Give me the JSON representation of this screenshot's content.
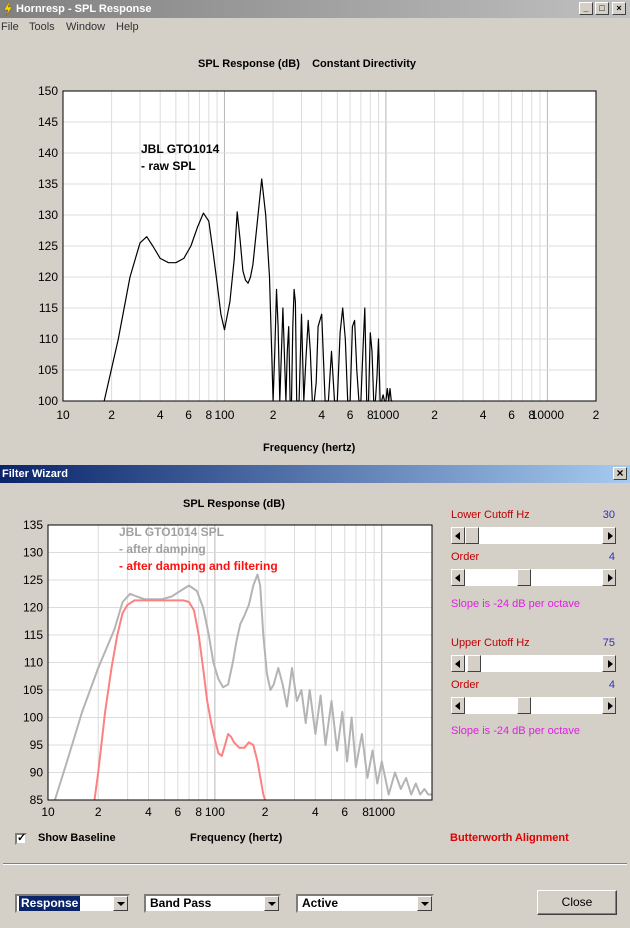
{
  "window1": {
    "title": "Hornresp - SPL Response",
    "menu": [
      "File",
      "Tools",
      "Window",
      "Help"
    ],
    "chart_title": "SPL Response (dB)    Constant Directivity",
    "xlabel": "Frequency (hertz)"
  },
  "window2": {
    "title": "Filter Wizard",
    "close_glyph": "×",
    "chart_title": "SPL Response (dB)",
    "xlabel": "Frequency (hertz)",
    "lower_cutoff_label": "Lower Cutoff  Hz",
    "lower_cutoff_value": "30",
    "lower_order_label": "Order",
    "lower_order_value": "4",
    "lower_slope_text": "Slope is -24 dB per octave",
    "upper_cutoff_label": "Upper Cutoff  Hz",
    "upper_cutoff_value": "75",
    "upper_order_label": "Order",
    "upper_order_value": "4",
    "upper_slope_text": "Slope is -24 dB per octave",
    "show_baseline_label": "Show Baseline",
    "alignment_text": "Butterworth Alignment",
    "combo_response": "Response",
    "combo_filter": "Band Pass",
    "combo_mode": "Active",
    "close_label": "Close"
  },
  "chart_data": [
    {
      "type": "line",
      "title": "SPL Response (dB)    Constant Directivity",
      "xlabel": "Frequency (hertz)",
      "ylabel": "",
      "xscale": "log",
      "xlim": [
        10,
        20000
      ],
      "ylim": [
        100,
        150
      ],
      "yticks": [
        100,
        105,
        110,
        115,
        120,
        125,
        130,
        135,
        140,
        145,
        150
      ],
      "xtick_labels": [
        "10",
        "2",
        "4",
        "6",
        "8",
        "100",
        "2",
        "4",
        "6",
        "8",
        "1000",
        "2",
        "4",
        "6",
        "8",
        "10000",
        "2"
      ],
      "annotations": [
        "JBL GTO1014",
        "- raw SPL"
      ],
      "grid": true,
      "series": [
        {
          "color": "#000000",
          "x": [
            18,
            22,
            26,
            30,
            33,
            36,
            40,
            45,
            50,
            56,
            62,
            68,
            74,
            80,
            85,
            90,
            95,
            100,
            108,
            115,
            120,
            125,
            130,
            135,
            140,
            145,
            150,
            160,
            170,
            180,
            190,
            195,
            200,
            205,
            210,
            215,
            220,
            230,
            240,
            245,
            250,
            255,
            260,
            265,
            270,
            275,
            280,
            290,
            300,
            310,
            320,
            330,
            340,
            350,
            360,
            370,
            380,
            400,
            420,
            440,
            460,
            480,
            500,
            520,
            540,
            560,
            580,
            600,
            620,
            640,
            660,
            680,
            700,
            720,
            740,
            760,
            780,
            800,
            820,
            840,
            860,
            880,
            900,
            920,
            940,
            960,
            980,
            1000,
            1020,
            1040,
            1060,
            1080,
            1100
          ],
          "y": [
            100,
            110,
            120,
            125.5,
            126.5,
            125,
            123,
            122.3,
            122.3,
            123,
            125,
            128,
            130.3,
            129,
            124,
            119,
            114,
            111.5,
            116,
            123,
            130.5,
            126,
            121,
            119.5,
            119,
            120,
            122,
            129,
            135.8,
            130,
            120,
            110,
            100,
            108,
            118,
            112,
            100,
            115,
            100,
            108,
            112,
            100,
            100,
            112,
            118,
            116,
            100,
            100,
            114,
            100,
            107,
            113,
            108,
            100,
            100,
            103,
            112,
            114,
            100,
            100,
            108,
            100,
            100,
            111,
            115,
            110,
            100,
            100,
            112,
            113,
            105,
            100,
            100,
            108,
            115,
            100,
            100,
            111,
            108,
            100,
            100,
            104,
            110,
            100,
            100,
            101,
            100,
            100,
            102,
            100,
            102,
            100,
            100
          ]
        }
      ]
    },
    {
      "type": "line",
      "title": "SPL Response (dB)",
      "xlabel": "Frequency (hertz)",
      "ylabel": "",
      "xscale": "log",
      "xlim": [
        10,
        2000
      ],
      "ylim": [
        85,
        135
      ],
      "yticks": [
        85,
        90,
        95,
        100,
        105,
        110,
        115,
        120,
        125,
        130,
        135
      ],
      "xtick_labels": [
        "10",
        "2",
        "4",
        "6",
        "8",
        "100",
        "2",
        "4",
        "6",
        "8",
        "1000"
      ],
      "annotations": [
        "JBL GTO1014 SPL",
        "- after damping",
        "- after damping and filtering"
      ],
      "grid": true,
      "series": [
        {
          "name": "- after damping",
          "color": "#b4b4b4",
          "x": [
            11,
            13,
            16,
            20,
            25,
            28,
            31,
            34,
            38,
            42,
            48,
            55,
            62,
            70,
            78,
            85,
            92,
            98,
            105,
            112,
            120,
            128,
            135,
            142,
            150,
            160,
            170,
            180,
            187,
            195,
            205,
            215,
            225,
            240,
            255,
            270,
            290,
            310,
            330,
            350,
            370,
            400,
            430,
            460,
            500,
            540,
            580,
            620,
            660,
            700,
            760,
            820,
            880,
            940,
            1000,
            1100,
            1200,
            1300,
            1400,
            1500,
            1600,
            1700,
            1800,
            1900,
            2000
          ],
          "y": [
            85,
            92,
            101,
            109,
            116,
            121,
            122.5,
            122,
            121.5,
            121.5,
            121.5,
            122,
            123,
            124,
            123,
            120,
            115,
            110,
            107,
            105.5,
            106,
            110,
            114,
            117,
            118.5,
            120.5,
            124,
            126,
            124,
            115,
            108,
            105,
            106,
            109,
            106,
            102,
            109,
            103,
            105,
            99,
            105,
            97,
            104,
            95,
            103,
            94,
            101,
            92,
            100,
            91,
            97,
            89,
            94,
            88,
            92,
            86,
            90,
            87,
            89,
            86,
            88,
            86,
            87,
            86,
            86
          ]
        },
        {
          "name": "- after damping and filtering",
          "color": "#ff8080",
          "x": [
            19,
            20,
            22,
            24,
            26,
            28,
            30,
            33,
            36,
            40,
            45,
            50,
            55,
            60,
            65,
            70,
            75,
            80,
            85,
            90,
            95,
            100,
            105,
            110,
            115,
            120,
            125,
            130,
            140,
            150,
            160,
            170,
            180,
            190,
            195,
            200
          ],
          "y": [
            85,
            90,
            101,
            109,
            115,
            119,
            120.5,
            121.3,
            121.3,
            121.3,
            121.3,
            121.3,
            121.3,
            121.3,
            121.3,
            121,
            119.5,
            115,
            109,
            103,
            99,
            96,
            93.5,
            93,
            95,
            97,
            96.5,
            95.5,
            94.5,
            94.5,
            95.5,
            95,
            92,
            88,
            86,
            85
          ]
        }
      ]
    }
  ]
}
